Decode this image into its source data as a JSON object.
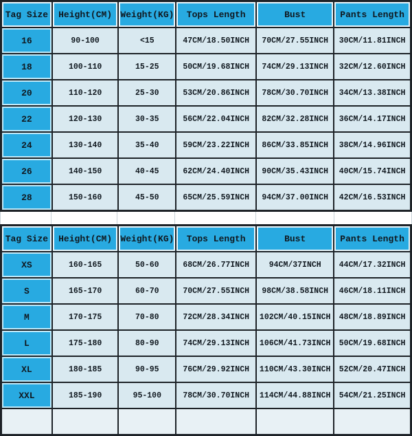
{
  "colors": {
    "header_blue": "#28aae1",
    "cell_light_blue": "#d9e9f0",
    "grid_dark": "#1d2227",
    "blue_cell_outline": "#eaf7fd",
    "text_dark": "#10181f",
    "gap_background": "#ffffff"
  },
  "chart_data": [
    {
      "type": "table",
      "title": "Kids size chart",
      "columns": [
        "Tag Size",
        "Height(CM)",
        "Weight(KG)",
        "Tops Length",
        "Bust",
        "Pants Length"
      ],
      "rows": [
        [
          "16",
          "90-100",
          "<15",
          "47CM/18.50INCH",
          "70CM/27.55INCH",
          "30CM/11.81INCH"
        ],
        [
          "18",
          "100-110",
          "15-25",
          "50CM/19.68INCH",
          "74CM/29.13INCH",
          "32CM/12.60INCH"
        ],
        [
          "20",
          "110-120",
          "25-30",
          "53CM/20.86INCH",
          "78CM/30.70INCH",
          "34CM/13.38INCH"
        ],
        [
          "22",
          "120-130",
          "30-35",
          "56CM/22.04INCH",
          "82CM/32.28INCH",
          "36CM/14.17INCH"
        ],
        [
          "24",
          "130-140",
          "35-40",
          "59CM/23.22INCH",
          "86CM/33.85INCH",
          "38CM/14.96INCH"
        ],
        [
          "26",
          "140-150",
          "40-45",
          "62CM/24.40INCH",
          "90CM/35.43INCH",
          "40CM/15.74INCH"
        ],
        [
          "28",
          "150-160",
          "45-50",
          "65CM/25.59INCH",
          "94CM/37.00INCH",
          "42CM/16.53INCH"
        ]
      ]
    },
    {
      "type": "table",
      "title": "Adult size chart",
      "columns": [
        "Tag Size",
        "Height(CM)",
        "Weight(KG)",
        "Tops Length",
        "Bust",
        "Pants Length"
      ],
      "rows": [
        [
          "XS",
          "160-165",
          "50-60",
          "68CM/26.77INCH",
          "94CM/37INCH",
          "44CM/17.32INCH"
        ],
        [
          "S",
          "165-170",
          "60-70",
          "70CM/27.55INCH",
          "98CM/38.58INCH",
          "46CM/18.11INCH"
        ],
        [
          "M",
          "170-175",
          "70-80",
          "72CM/28.34INCH",
          "102CM/40.15INCH",
          "48CM/18.89INCH"
        ],
        [
          "L",
          "175-180",
          "80-90",
          "74CM/29.13INCH",
          "106CM/41.73INCH",
          "50CM/19.68INCH"
        ],
        [
          "XL",
          "180-185",
          "90-95",
          "76CM/29.92INCH",
          "110CM/43.30INCH",
          "52CM/20.47INCH"
        ],
        [
          "XXL",
          "185-190",
          "95-100",
          "78CM/30.70INCH",
          "114CM/44.88INCH",
          "54CM/21.25INCH"
        ]
      ],
      "has_clipped_partial_row": true
    }
  ]
}
